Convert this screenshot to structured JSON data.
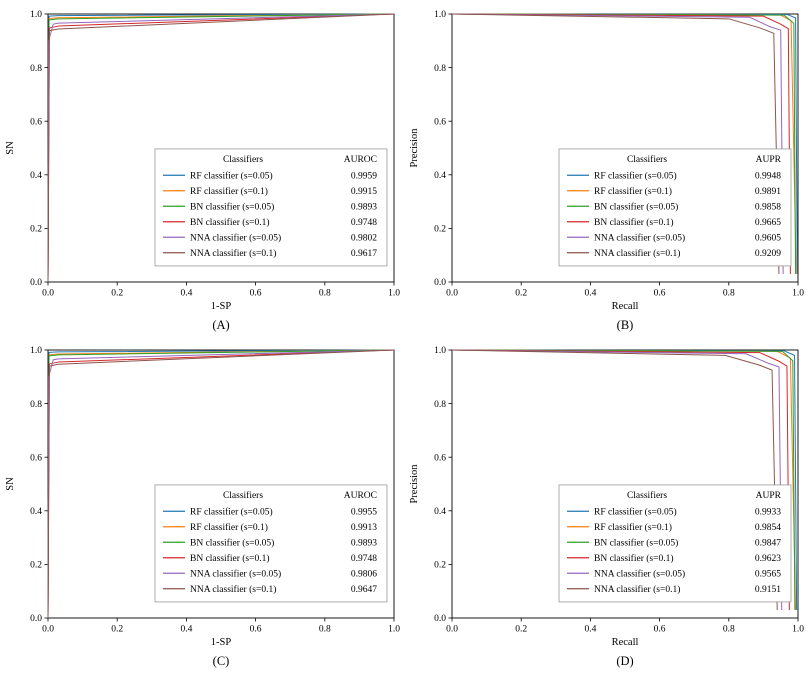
{
  "figure": {
    "background": "#ffffff"
  },
  "chart_data": [
    {
      "type": "line",
      "panel": "A",
      "caption": "(A)",
      "xlabel": "1-SP",
      "ylabel": "SN",
      "xlim": [
        0,
        1
      ],
      "ylim": [
        0,
        1
      ],
      "grid": false,
      "legend_position": "lower right",
      "xticks": [
        "0.0",
        "0.2",
        "0.4",
        "0.6",
        "0.8",
        "1.0"
      ],
      "yticks": [
        "0.0",
        "0.2",
        "0.4",
        "0.6",
        "0.8",
        "1.0"
      ],
      "legend": {
        "header_left": "Classifiers",
        "header_right": "AUROC"
      },
      "series": [
        {
          "label": "RF classifier (s=0.05)",
          "value": "0.9959",
          "color": "#1f77b4",
          "points": [
            [
              0,
              0
            ],
            [
              0.003,
              0.992
            ],
            [
              0.03,
              0.994
            ],
            [
              1,
              1
            ]
          ]
        },
        {
          "label": "RF classifier (s=0.1)",
          "value": "0.9915",
          "color": "#ff7f0e",
          "points": [
            [
              0,
              0
            ],
            [
              0.003,
              0.983
            ],
            [
              0.03,
              0.986
            ],
            [
              1,
              1
            ]
          ]
        },
        {
          "label": "BN classifier (s=0.05)",
          "value": "0.9893",
          "color": "#2ca02c",
          "points": [
            [
              0,
              0
            ],
            [
              0.003,
              0.978
            ],
            [
              0.03,
              0.982
            ],
            [
              1,
              1
            ]
          ]
        },
        {
          "label": "BN classifier (s=0.1)",
          "value": "0.9748",
          "color": "#d62728",
          "points": [
            [
              0,
              0
            ],
            [
              0.004,
              0.948
            ],
            [
              0.03,
              0.955
            ],
            [
              1,
              1
            ]
          ]
        },
        {
          "label": "NNA classifier (s=0.05)",
          "value": "0.9802",
          "color": "#9467bd",
          "points": [
            [
              0,
              0
            ],
            [
              0.002,
              0.9
            ],
            [
              0.015,
              0.962
            ],
            [
              0.03,
              0.966
            ],
            [
              1,
              1
            ]
          ]
        },
        {
          "label": "NNA classifier (s=0.1)",
          "value": "0.9617",
          "color": "#8c564b",
          "points": [
            [
              0,
              0
            ],
            [
              0.004,
              0.938
            ],
            [
              0.03,
              0.944
            ],
            [
              1,
              1
            ]
          ]
        }
      ]
    },
    {
      "type": "line",
      "panel": "B",
      "caption": "(B)",
      "xlabel": "Recall",
      "ylabel": "Precision",
      "xlim": [
        0,
        1
      ],
      "ylim": [
        0,
        1
      ],
      "grid": false,
      "legend_position": "lower right",
      "xticks": [
        "0.0",
        "0.2",
        "0.4",
        "0.6",
        "0.8",
        "1.0"
      ],
      "yticks": [
        "0.0",
        "0.2",
        "0.4",
        "0.6",
        "0.8",
        "1.0"
      ],
      "legend": {
        "header_left": "Classifiers",
        "header_right": "AUPR"
      },
      "series": [
        {
          "label": "RF classifier (s=0.05)",
          "value": "0.9948",
          "color": "#1f77b4",
          "points": [
            [
              0,
              1
            ],
            [
              0.97,
              0.998
            ],
            [
              0.993,
              0.985
            ],
            [
              0.998,
              0.03
            ]
          ]
        },
        {
          "label": "RF classifier (s=0.1)",
          "value": "0.9891",
          "color": "#ff7f0e",
          "points": [
            [
              0,
              1
            ],
            [
              0.95,
              0.996
            ],
            [
              0.98,
              0.975
            ],
            [
              0.995,
              0.03
            ]
          ]
        },
        {
          "label": "BN classifier (s=0.05)",
          "value": "0.9858",
          "color": "#2ca02c",
          "points": [
            [
              0,
              1
            ],
            [
              0.96,
              0.996
            ],
            [
              0.988,
              0.965
            ],
            [
              0.993,
              0.03
            ]
          ]
        },
        {
          "label": "BN classifier (s=0.1)",
          "value": "0.9665",
          "color": "#d62728",
          "points": [
            [
              0,
              1
            ],
            [
              0.9,
              0.992
            ],
            [
              0.95,
              0.962
            ],
            [
              0.972,
              0.945
            ],
            [
              0.978,
              0.03
            ]
          ]
        },
        {
          "label": "NNA classifier (s=0.05)",
          "value": "0.9605",
          "color": "#9467bd",
          "points": [
            [
              0,
              1
            ],
            [
              0.86,
              0.988
            ],
            [
              0.92,
              0.952
            ],
            [
              0.95,
              0.94
            ],
            [
              0.957,
              0.03
            ]
          ]
        },
        {
          "label": "NNA classifier (s=0.1)",
          "value": "0.9209",
          "color": "#8c564b",
          "points": [
            [
              0,
              1
            ],
            [
              0.8,
              0.982
            ],
            [
              0.89,
              0.948
            ],
            [
              0.93,
              0.928
            ],
            [
              0.945,
              0.03
            ]
          ]
        }
      ]
    },
    {
      "type": "line",
      "panel": "C",
      "caption": "(C)",
      "xlabel": "1-SP",
      "ylabel": "SN",
      "xlim": [
        0,
        1
      ],
      "ylim": [
        0,
        1
      ],
      "grid": false,
      "legend_position": "lower right",
      "xticks": [
        "0.0",
        "0.2",
        "0.4",
        "0.6",
        "0.8",
        "1.0"
      ],
      "yticks": [
        "0.0",
        "0.2",
        "0.4",
        "0.6",
        "0.8",
        "1.0"
      ],
      "legend": {
        "header_left": "Classifiers",
        "header_right": "AUROC"
      },
      "series": [
        {
          "label": "RF classifier (s=0.05)",
          "value": "0.9955",
          "color": "#1f77b4",
          "points": [
            [
              0,
              0
            ],
            [
              0.003,
              0.991
            ],
            [
              0.03,
              0.993
            ],
            [
              1,
              1
            ]
          ]
        },
        {
          "label": "RF classifier (s=0.1)",
          "value": "0.9913",
          "color": "#ff7f0e",
          "points": [
            [
              0,
              0
            ],
            [
              0.003,
              0.982
            ],
            [
              0.03,
              0.985
            ],
            [
              1,
              1
            ]
          ]
        },
        {
          "label": "BN classifier (s=0.05)",
          "value": "0.9893",
          "color": "#2ca02c",
          "points": [
            [
              0,
              0
            ],
            [
              0.003,
              0.978
            ],
            [
              0.03,
              0.982
            ],
            [
              1,
              1
            ]
          ]
        },
        {
          "label": "BN classifier (s=0.1)",
          "value": "0.9748",
          "color": "#d62728",
          "points": [
            [
              0,
              0
            ],
            [
              0.004,
              0.948
            ],
            [
              0.03,
              0.955
            ],
            [
              1,
              1
            ]
          ]
        },
        {
          "label": "NNA classifier (s=0.05)",
          "value": "0.9806",
          "color": "#9467bd",
          "points": [
            [
              0,
              0
            ],
            [
              0.002,
              0.9
            ],
            [
              0.015,
              0.963
            ],
            [
              0.03,
              0.967
            ],
            [
              1,
              1
            ]
          ]
        },
        {
          "label": "NNA classifier (s=0.1)",
          "value": "0.9647",
          "color": "#8c564b",
          "points": [
            [
              0,
              0
            ],
            [
              0.004,
              0.94
            ],
            [
              0.03,
              0.947
            ],
            [
              1,
              1
            ]
          ]
        }
      ]
    },
    {
      "type": "line",
      "panel": "D",
      "caption": "(D)",
      "xlabel": "Recall",
      "ylabel": "Precision",
      "xlim": [
        0,
        1
      ],
      "ylim": [
        0,
        1
      ],
      "grid": false,
      "legend_position": "lower right",
      "xticks": [
        "0.0",
        "0.2",
        "0.4",
        "0.6",
        "0.8",
        "1.0"
      ],
      "yticks": [
        "0.0",
        "0.2",
        "0.4",
        "0.6",
        "0.8",
        "1.0"
      ],
      "legend": {
        "header_left": "Classifiers",
        "header_right": "AUPR"
      },
      "series": [
        {
          "label": "RF classifier (s=0.05)",
          "value": "0.9933",
          "color": "#1f77b4",
          "points": [
            [
              0,
              1
            ],
            [
              0.96,
              0.997
            ],
            [
              0.99,
              0.98
            ],
            [
              0.996,
              0.03
            ]
          ]
        },
        {
          "label": "RF classifier (s=0.1)",
          "value": "0.9854",
          "color": "#ff7f0e",
          "points": [
            [
              0,
              1
            ],
            [
              0.94,
              0.995
            ],
            [
              0.978,
              0.97
            ],
            [
              0.993,
              0.03
            ]
          ]
        },
        {
          "label": "BN classifier (s=0.05)",
          "value": "0.9847",
          "color": "#2ca02c",
          "points": [
            [
              0,
              1
            ],
            [
              0.955,
              0.995
            ],
            [
              0.985,
              0.96
            ],
            [
              0.991,
              0.03
            ]
          ]
        },
        {
          "label": "BN classifier (s=0.1)",
          "value": "0.9623",
          "color": "#d62728",
          "points": [
            [
              0,
              1
            ],
            [
              0.89,
              0.99
            ],
            [
              0.945,
              0.958
            ],
            [
              0.968,
              0.94
            ],
            [
              0.975,
              0.03
            ]
          ]
        },
        {
          "label": "NNA classifier (s=0.05)",
          "value": "0.9565",
          "color": "#9467bd",
          "points": [
            [
              0,
              1
            ],
            [
              0.85,
              0.986
            ],
            [
              0.915,
              0.95
            ],
            [
              0.945,
              0.937
            ],
            [
              0.953,
              0.03
            ]
          ]
        },
        {
          "label": "NNA classifier (s=0.1)",
          "value": "0.9151",
          "color": "#8c564b",
          "points": [
            [
              0,
              1
            ],
            [
              0.79,
              0.98
            ],
            [
              0.885,
              0.945
            ],
            [
              0.925,
              0.925
            ],
            [
              0.94,
              0.03
            ]
          ]
        }
      ]
    }
  ]
}
